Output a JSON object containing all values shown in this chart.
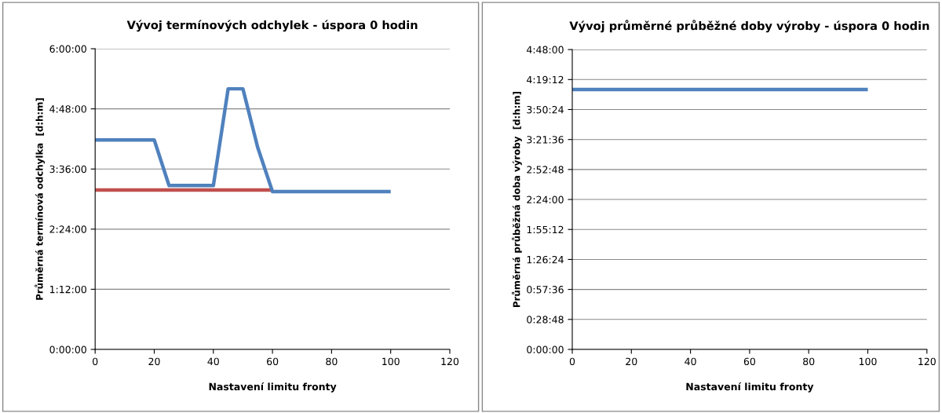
{
  "chart_data": [
    {
      "type": "line",
      "title": "Vývoj termínových odchylek - úspora 0 hodin",
      "xlabel": "Nastavení limitu fronty",
      "ylabel": "Průměrná termínová odchylka  [d:h:m]",
      "series": [
        {
          "color": "#c0504d",
          "x": [
            0,
            60
          ],
          "values": [
            3.18,
            3.18
          ]
        },
        {
          "color": "#4f81bd",
          "x": [
            0,
            20,
            25,
            40,
            45,
            50,
            55,
            60,
            100
          ],
          "values": [
            4.18,
            4.18,
            3.27,
            3.27,
            5.2,
            5.2,
            4.03,
            3.15,
            3.15
          ]
        }
      ],
      "xlim": [
        0,
        120
      ],
      "xticks": [
        0,
        20,
        40,
        60,
        80,
        100,
        120
      ],
      "ylim": [
        0,
        6
      ],
      "yticks": [
        {
          "value": 0,
          "label": "0:00:00"
        },
        {
          "value": 1.2,
          "label": "1:12:00"
        },
        {
          "value": 2.4,
          "label": "2:24:00"
        },
        {
          "value": 3.6,
          "label": "3:36:00"
        },
        {
          "value": 4.8,
          "label": "4:48:00"
        },
        {
          "value": 6,
          "label": "6:00:00"
        }
      ],
      "grid": "y",
      "legend": false,
      "marker": "none",
      "line_style": "solid"
    },
    {
      "type": "line",
      "title": "Vývoj průměrné průběžné doby výroby - úspora 0 hodin",
      "xlabel": "Nastavení limitu fronty",
      "ylabel": "Průměrná průběžná doba výroby  [d:h:m]",
      "series": [
        {
          "color": "#4f81bd",
          "x": [
            0,
            100
          ],
          "values": [
            4.16,
            4.16
          ]
        }
      ],
      "xlim": [
        0,
        120
      ],
      "xticks": [
        0,
        20,
        40,
        60,
        80,
        100,
        120
      ],
      "ylim": [
        0,
        4.8
      ],
      "yticks": [
        {
          "value": 0,
          "label": "0:00:00"
        },
        {
          "value": 0.48,
          "label": "0:28:48"
        },
        {
          "value": 0.96,
          "label": "0:57:36"
        },
        {
          "value": 1.44,
          "label": "1:26:24"
        },
        {
          "value": 1.92,
          "label": "1:55:12"
        },
        {
          "value": 2.4,
          "label": "2:24:00"
        },
        {
          "value": 2.88,
          "label": "2:52:48"
        },
        {
          "value": 3.36,
          "label": "3:21:36"
        },
        {
          "value": 3.84,
          "label": "3:50:24"
        },
        {
          "value": 4.32,
          "label": "4:19:12"
        },
        {
          "value": 4.8,
          "label": "4:48:00"
        }
      ],
      "grid": "y",
      "legend": false,
      "marker": "none",
      "line_style": "solid"
    }
  ]
}
